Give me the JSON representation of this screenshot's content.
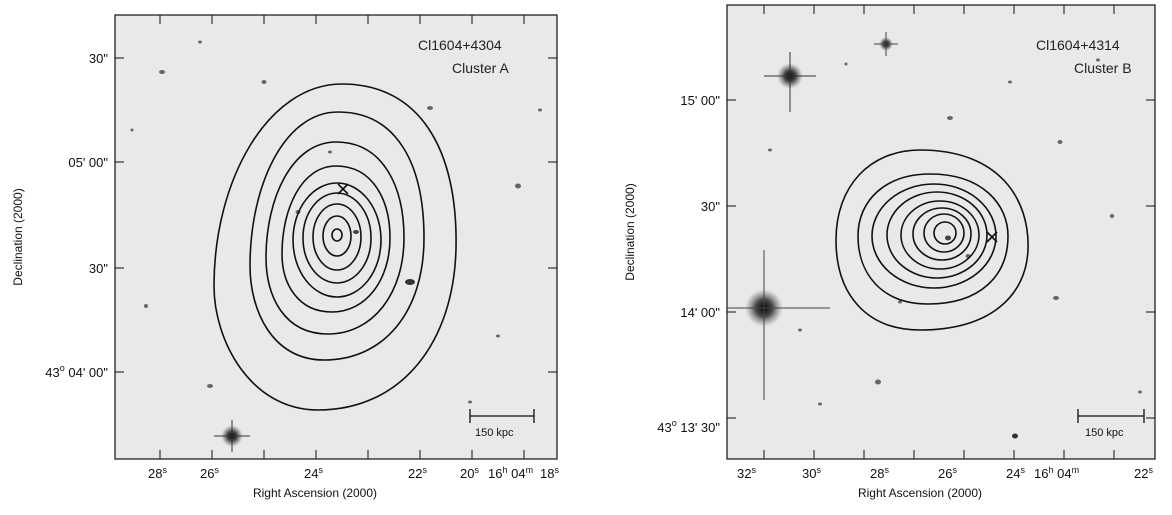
{
  "panels": [
    {
      "id": "A",
      "title_line1": "Cl1604+4304",
      "title_line2": "Cluster A",
      "xlabel": "Right Ascension (2000)",
      "ylabel": "Declination (2000)",
      "x_ticks": [
        {
          "main": "28",
          "sup": "s"
        },
        {
          "main": "26",
          "sup": "s"
        },
        {
          "main": "24",
          "sup": "s"
        },
        {
          "main": "22",
          "sup": "s"
        },
        {
          "main": "20",
          "sup": "s"
        },
        {
          "main": "16",
          "sup": "h"
        },
        {
          "main": "04",
          "sup": "m"
        },
        {
          "main": "18",
          "sup": "s"
        }
      ],
      "y_ticks": [
        {
          "text": "30\""
        },
        {
          "text": "05' 00\""
        },
        {
          "text": "30\""
        },
        {
          "prefix": "43",
          "sup": "o",
          "text": " 04' 00\""
        }
      ],
      "scalebar_label": "150 kpc"
    },
    {
      "id": "B",
      "title_line1": "Cl1604+4314",
      "title_line2": "Cluster B",
      "xlabel": "Right Ascension (2000)",
      "ylabel": "Declination (2000)",
      "x_ticks": [
        {
          "main": "32",
          "sup": "s"
        },
        {
          "main": "30",
          "sup": "s"
        },
        {
          "main": "28",
          "sup": "s"
        },
        {
          "main": "26",
          "sup": "s"
        },
        {
          "main": "24",
          "sup": "s"
        },
        {
          "main": "16",
          "sup": "h"
        },
        {
          "main": "04",
          "sup": "m"
        },
        {
          "main": "22",
          "sup": "s"
        }
      ],
      "y_ticks": [
        {
          "text": "15' 00\""
        },
        {
          "text": "30\""
        },
        {
          "text": "14' 00\""
        },
        {
          "prefix": "43",
          "sup": "o",
          "text": " 13' 30\""
        }
      ],
      "scalebar_label": "150 kpc"
    }
  ]
}
